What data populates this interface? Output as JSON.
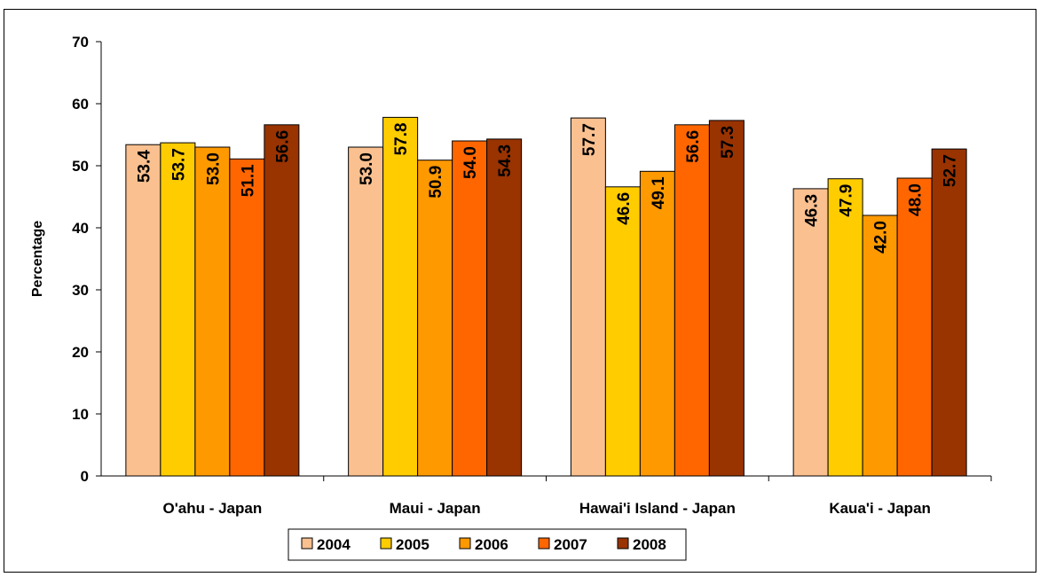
{
  "chart_data": {
    "type": "bar",
    "title": "",
    "ylabel": "Percentage",
    "xlabel": "",
    "ylim": [
      0,
      70
    ],
    "yticks": [
      0,
      10,
      20,
      30,
      40,
      50,
      60,
      70
    ],
    "categories": [
      "O'ahu - Japan",
      "Maui - Japan",
      "Hawai'i Island - Japan",
      "Kaua'i - Japan"
    ],
    "series": [
      {
        "name": "2004",
        "color": "#FAC090",
        "values": [
          53.4,
          53.0,
          57.7,
          46.3
        ]
      },
      {
        "name": "2005",
        "color": "#FFCC00",
        "values": [
          53.7,
          57.8,
          46.6,
          47.9
        ]
      },
      {
        "name": "2006",
        "color": "#FF9900",
        "values": [
          53.0,
          50.9,
          49.1,
          42.0
        ]
      },
      {
        "name": "2007",
        "color": "#FF6600",
        "values": [
          51.1,
          54.0,
          56.6,
          48.0
        ]
      },
      {
        "name": "2008",
        "color": "#993300",
        "values": [
          56.6,
          54.3,
          57.3,
          52.7
        ]
      }
    ],
    "value_labels_text": [
      [
        "53.4",
        "53.0",
        "57.7",
        "46.3"
      ],
      [
        "53.7",
        "57.8",
        "46.6",
        "47.9"
      ],
      [
        "53.0",
        "50.9",
        "49.1",
        "42.0"
      ],
      [
        "51.1",
        "54.0",
        "56.6",
        "48.0"
      ],
      [
        "56.6",
        "54.3",
        "57.3",
        "52.7"
      ]
    ],
    "grid": false,
    "legend": "bottom"
  }
}
